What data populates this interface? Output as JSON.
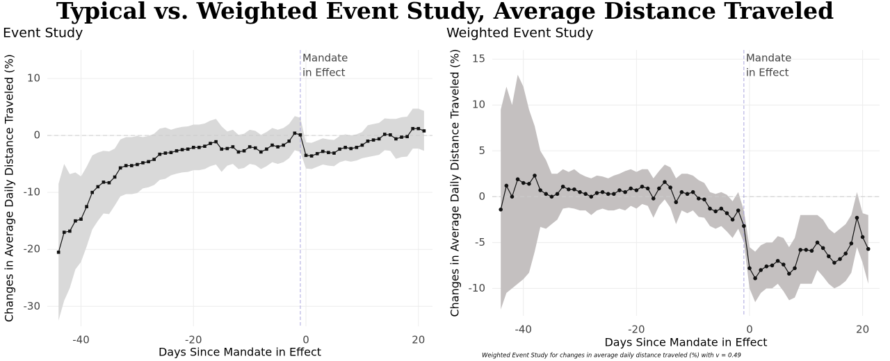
{
  "title": "Typical vs. Weighted Event Study, Average Distance Traveled",
  "caption": "Weighted Event Study for changes in average daily distance traveled (%) with v = 0.49",
  "chart_data": [
    {
      "type": "line",
      "title": "Event Study",
      "xlabel": "Days Since Mandate in Effect",
      "ylabel": "Changes in Average Daily Distance Traveled (%)",
      "annotation": [
        "Mandate",
        "in Effect"
      ],
      "mandate_x": -1,
      "hline": 0,
      "marker": "square",
      "color": "#111111",
      "band_color": "#d9d9d9",
      "grid": true,
      "xlim": [
        -46,
        22.5
      ],
      "ylim": [
        -33.5,
        15
      ],
      "xticks": [
        -40,
        -20,
        0,
        20
      ],
      "yticks": [
        -30,
        -20,
        -10,
        0,
        10
      ],
      "x": [
        -44,
        -43,
        -42,
        -41,
        -40,
        -39,
        -38,
        -37,
        -36,
        -35,
        -34,
        -33,
        -32,
        -31,
        -30,
        -29,
        -28,
        -27,
        -26,
        -25,
        -24,
        -23,
        -22,
        -21,
        -20,
        -19,
        -18,
        -17,
        -16,
        -15,
        -14,
        -13,
        -12,
        -11,
        -10,
        -9,
        -8,
        -7,
        -6,
        -5,
        -4,
        -3,
        -2,
        -1,
        0,
        1,
        2,
        3,
        4,
        5,
        6,
        7,
        8,
        9,
        10,
        11,
        12,
        13,
        14,
        15,
        16,
        17,
        18,
        19,
        20,
        21
      ],
      "values": [
        -20.5,
        -17,
        -16.8,
        -15,
        -14.7,
        -12.5,
        -10,
        -9,
        -8.2,
        -8.3,
        -7.3,
        -5.7,
        -5.3,
        -5.3,
        -5.1,
        -4.8,
        -4.6,
        -4.2,
        -3.3,
        -3.1,
        -3.0,
        -2.7,
        -2.5,
        -2.4,
        -2.1,
        -2.1,
        -1.9,
        -1.4,
        -1.1,
        -2.4,
        -2.3,
        -2.0,
        -2.9,
        -2.7,
        -2.0,
        -2.2,
        -2.9,
        -2.4,
        -1.7,
        -2.0,
        -1.7,
        -1.0,
        0.4,
        0.1,
        -3.5,
        -3.6,
        -3.2,
        -2.8,
        -3.0,
        -3.1,
        -2.4,
        -2.1,
        -2.3,
        -2.1,
        -1.7,
        -1.0,
        -0.8,
        -0.6,
        0.2,
        0.1,
        -0.6,
        -0.3,
        -0.2,
        1.2,
        1.2,
        0.8
      ],
      "lower": [
        -32.5,
        -29,
        -26.8,
        -23.5,
        -22.2,
        -19.5,
        -16.5,
        -15,
        -13.7,
        -13.8,
        -12.3,
        -10.7,
        -10.3,
        -10.3,
        -10.1,
        -9.3,
        -9.1,
        -8.7,
        -7.8,
        -7.6,
        -7.0,
        -6.7,
        -6.5,
        -6.4,
        -6.1,
        -6.1,
        -5.9,
        -5.4,
        -5.1,
        -6.4,
        -5.3,
        -5.0,
        -5.9,
        -5.7,
        -5.0,
        -5.2,
        -5.9,
        -5.4,
        -4.7,
        -5.0,
        -4.7,
        -4.0,
        -2.6,
        -2.9,
        -5.8,
        -5.9,
        -5.5,
        -5.1,
        -5.3,
        -5.4,
        -4.7,
        -4.4,
        -4.6,
        -4.4,
        -4.0,
        -3.8,
        -3.6,
        -3.4,
        -2.6,
        -2.7,
        -4.1,
        -3.8,
        -3.7,
        -2.3,
        -2.3,
        -2.7
      ],
      "upper": [
        -8.5,
        -5,
        -6.8,
        -6.5,
        -7.2,
        -5.5,
        -3.5,
        -3,
        -2.7,
        -2.8,
        -2.3,
        -0.7,
        -0.3,
        -0.3,
        -0.1,
        -0.3,
        -0.1,
        0.3,
        1.2,
        1.4,
        1.0,
        1.3,
        1.5,
        1.6,
        1.9,
        1.9,
        2.1,
        2.6,
        2.9,
        1.6,
        0.7,
        1.0,
        0.1,
        0.3,
        1.0,
        0.8,
        0.1,
        0.6,
        1.3,
        1.0,
        1.3,
        2.0,
        3.4,
        3.1,
        -1.2,
        -1.3,
        -0.9,
        -0.5,
        -0.7,
        -0.8,
        -0.1,
        0.2,
        0.0,
        0.2,
        0.6,
        1.8,
        2.0,
        2.2,
        3.0,
        2.9,
        2.9,
        3.2,
        3.3,
        4.7,
        4.7,
        4.3
      ]
    },
    {
      "type": "line",
      "title": "Weighted Event Study",
      "xlabel": "Days Since Mandate in Effect",
      "ylabel": "Changes in Average Daily Distance Traveled (%)",
      "annotation": [
        "Mandate",
        "in Effect"
      ],
      "mandate_x": -1,
      "hline": 0,
      "marker": "circle",
      "color": "#111111",
      "band_color": "#c4c0c0",
      "grid": true,
      "xlim": [
        -45.5,
        23
      ],
      "ylim": [
        -13,
        16
      ],
      "xticks": [
        -40,
        -20,
        0,
        20
      ],
      "yticks": [
        -10,
        -5,
        0,
        5,
        10,
        15
      ],
      "x": [
        -44,
        -43,
        -42,
        -41,
        -40,
        -39,
        -38,
        -37,
        -36,
        -35,
        -34,
        -33,
        -32,
        -31,
        -30,
        -29,
        -28,
        -27,
        -26,
        -25,
        -24,
        -23,
        -22,
        -21,
        -20,
        -19,
        -18,
        -17,
        -16,
        -15,
        -14,
        -13,
        -12,
        -11,
        -10,
        -9,
        -8,
        -7,
        -6,
        -5,
        -4,
        -3,
        -2,
        -1,
        0,
        1,
        2,
        3,
        4,
        5,
        6,
        7,
        8,
        9,
        10,
        11,
        12,
        13,
        14,
        15,
        16,
        17,
        18,
        19,
        20,
        21
      ],
      "values": [
        -1.4,
        1.2,
        0.0,
        1.9,
        1.5,
        1.4,
        2.3,
        0.7,
        0.3,
        0.0,
        0.3,
        1.1,
        0.8,
        0.8,
        0.5,
        0.3,
        0.0,
        0.4,
        0.5,
        0.3,
        0.3,
        0.7,
        0.5,
        0.9,
        0.7,
        1.1,
        0.9,
        -0.2,
        0.9,
        1.6,
        1.0,
        -0.6,
        0.5,
        0.3,
        0.5,
        -0.2,
        -0.3,
        -1.3,
        -1.6,
        -1.3,
        -1.8,
        -2.5,
        -1.5,
        -3.2,
        -7.8,
        -8.9,
        -8.0,
        -7.6,
        -7.5,
        -7.0,
        -7.4,
        -8.4,
        -7.8,
        -5.8,
        -5.8,
        -5.9,
        -5.0,
        -5.6,
        -6.5,
        -7.2,
        -6.8,
        -6.2,
        -5.1,
        -2.3,
        -4.4,
        -5.7
      ],
      "lower": [
        -12.3,
        -10.5,
        -10,
        -9.5,
        -9,
        -8.3,
        -6,
        -3.3,
        -3.5,
        -3,
        -2.5,
        -1.3,
        -1.2,
        -1.3,
        -1.5,
        -1.5,
        -2.0,
        -1.5,
        -1.3,
        -1.5,
        -1.5,
        -1.3,
        -1.5,
        -1,
        -1.3,
        -0.8,
        -1,
        -2.3,
        -1,
        -0.3,
        -1.2,
        -3,
        -1.5,
        -1.8,
        -1.5,
        -2.2,
        -2.3,
        -3.2,
        -3.5,
        -3.2,
        -3.8,
        -4.5,
        -3.5,
        -5,
        -10,
        -11.5,
        -10.5,
        -10,
        -10,
        -9.5,
        -10.3,
        -11.3,
        -11,
        -9.5,
        -9.5,
        -9.5,
        -8,
        -8.7,
        -9.5,
        -10,
        -9.7,
        -9.2,
        -8.3,
        -5.5,
        -7.2,
        -9.5
      ],
      "upper": [
        9.5,
        12,
        10,
        13.3,
        12,
        9.5,
        7.7,
        5,
        4,
        2.5,
        2.5,
        3,
        2.7,
        3,
        2.5,
        2.2,
        2,
        2.3,
        2.2,
        2,
        2.3,
        2.5,
        2.8,
        3,
        2.7,
        3,
        3,
        2,
        2.8,
        3.5,
        3.2,
        2,
        2.5,
        2.5,
        2.3,
        1.8,
        1.5,
        0.5,
        0.3,
        0.5,
        0.2,
        -0.5,
        0.5,
        -1.5,
        -5.5,
        -6,
        -5.3,
        -5,
        -5,
        -4.3,
        -4.5,
        -5.5,
        -4.5,
        -2,
        -2,
        -2,
        -2,
        -2.5,
        -3.5,
        -4,
        -3.5,
        -3,
        -2,
        0.5,
        -1.8,
        -2
      ]
    }
  ]
}
